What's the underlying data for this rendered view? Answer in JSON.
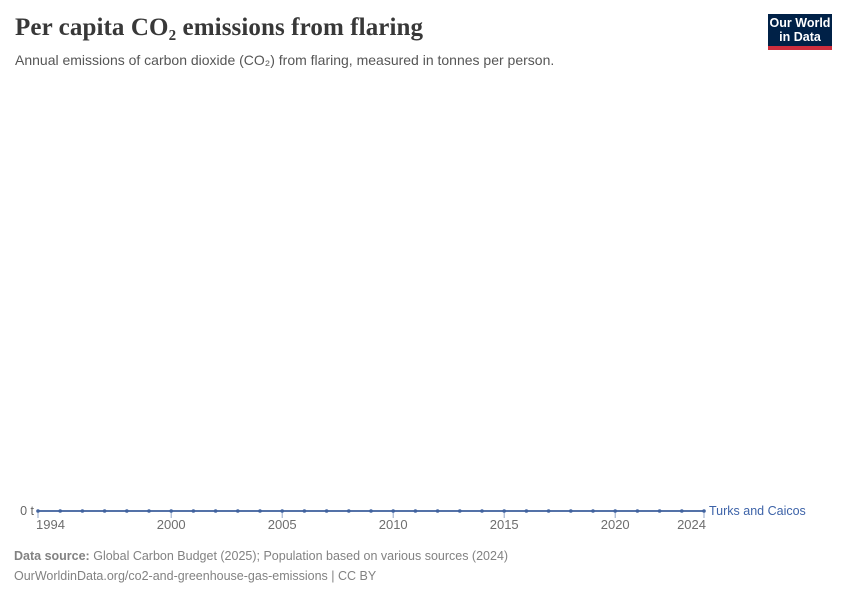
{
  "header": {
    "logo": {
      "line1": "Our World",
      "line2": "in Data"
    }
  },
  "chart_data": {
    "type": "line",
    "title": "Per capita CO₂ emissions from flaring",
    "subtitle": "Annual emissions of carbon dioxide (CO₂) from flaring, measured in tonnes per person.",
    "xlabel": "",
    "ylabel": "tonnes per person",
    "xlim": [
      1994,
      2024
    ],
    "ylim": [
      0,
      0
    ],
    "grid": false,
    "legend": "end-of-line-label",
    "x_ticks": [
      1994,
      2000,
      2005,
      2010,
      2015,
      2020,
      2024
    ],
    "y_tick_label": "0 t",
    "series": [
      {
        "name": "Turks and Caicos",
        "color": "#4467A8",
        "x": [
          1994,
          1995,
          1996,
          1997,
          1998,
          1999,
          2000,
          2001,
          2002,
          2003,
          2004,
          2005,
          2006,
          2007,
          2008,
          2009,
          2010,
          2011,
          2012,
          2013,
          2014,
          2015,
          2016,
          2017,
          2018,
          2019,
          2020,
          2021,
          2022,
          2023,
          2024
        ],
        "values": [
          0,
          0,
          0,
          0,
          0,
          0,
          0,
          0,
          0,
          0,
          0,
          0,
          0,
          0,
          0,
          0,
          0,
          0,
          0,
          0,
          0,
          0,
          0,
          0,
          0,
          0,
          0,
          0,
          0,
          0,
          0
        ]
      }
    ]
  },
  "footer": {
    "source_label": "Data source:",
    "source_text": "Global Carbon Budget (2025); Population based on various sources (2024)",
    "citation": "OurWorldinData.org/co2-and-greenhouse-gas-emissions | CC BY"
  },
  "colors": {
    "series_line": "#5472A8",
    "series_marker": "#41639F",
    "entity_label": "#3D63A8",
    "axis_tick": "#93A7C9",
    "axis_text": "#6e6e6e",
    "y_axis_text": "#666666",
    "logo_bg": "#002147",
    "logo_stripe": "#CE2E3D"
  }
}
